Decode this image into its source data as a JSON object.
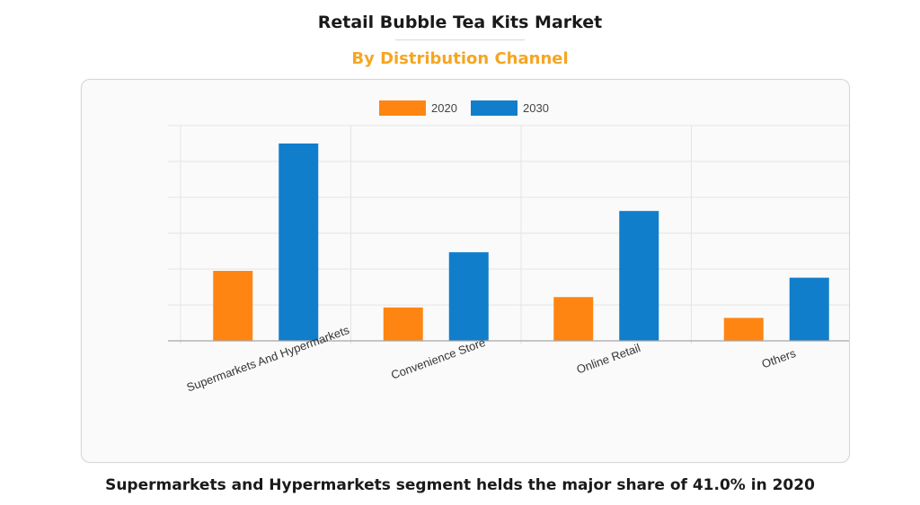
{
  "title": "Retail Bubble Tea Kits Market",
  "subtitle": "By Distribution Channel",
  "caption": "Supermarkets and Hypermarkets segment helds the major share of 41.0% in 2020",
  "colors": {
    "series_2020": "#ff8512",
    "series_2030": "#117ecb",
    "subtitle": "#f5a623"
  },
  "chart_data": {
    "type": "bar",
    "categories": [
      "Supermarkets And Hypermarkets",
      "Convenience Store",
      "Online Retail",
      "Others"
    ],
    "series": [
      {
        "name": "2020",
        "values": [
          19.5,
          9.3,
          12.2,
          6.4
        ]
      },
      {
        "name": "2030",
        "values": [
          55.0,
          24.7,
          36.2,
          17.6
        ]
      }
    ],
    "title": "",
    "xlabel": "",
    "ylabel": "",
    "ylim": [
      0,
      60
    ],
    "grid": true,
    "legend": "top-center",
    "y_tick_labels_visible": false
  }
}
